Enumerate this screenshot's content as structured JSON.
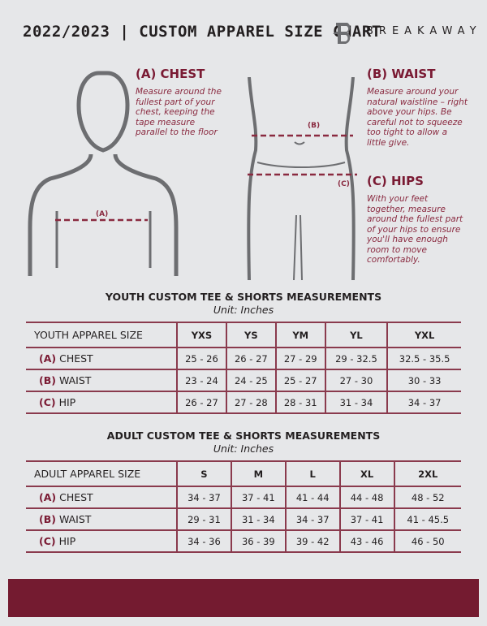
{
  "header": {
    "title": "2022/2023 | CUSTOM APPAREL SIZE CHART",
    "brand": "BREAKAWAY"
  },
  "guide": {
    "chest": {
      "title": "(A) CHEST",
      "text": "Measure around the fullest part of your chest, keeping the tape measure parallel to the floor",
      "marker": "(A)"
    },
    "waist": {
      "title": "(B) WAIST",
      "text": "Measure around your natural waistline – right above your hips. Be careful not to squeeze too tight to allow a little give.",
      "marker": "(B)"
    },
    "hips": {
      "title": "(C) HIPS",
      "text": "With your feet together, measure around the fullest part of your hips to ensure you'll have enough room to move comfortably.",
      "marker": "(C)"
    }
  },
  "youth": {
    "title": "YOUTH CUSTOM TEE & SHORTS MEASUREMENTS",
    "unit": "Unit: Inches",
    "size_label": "YOUTH APPAREL SIZE",
    "sizes": [
      "YXS",
      "YS",
      "YM",
      "YL",
      "YXL"
    ],
    "rows": [
      {
        "letter": "(A)",
        "name": "CHEST",
        "values": [
          "25 - 26",
          "26 - 27",
          "27 - 29",
          "29 - 32.5",
          "32.5 - 35.5"
        ]
      },
      {
        "letter": "(B)",
        "name": "WAIST",
        "values": [
          "23 - 24",
          "24 - 25",
          "25 - 27",
          "27 - 30",
          "30 - 33"
        ]
      },
      {
        "letter": "(C)",
        "name": "HIP",
        "values": [
          "26 - 27",
          "27 - 28",
          "28 - 31",
          "31 - 34",
          "34 - 37"
        ]
      }
    ]
  },
  "adult": {
    "title": "ADULT CUSTOM TEE & SHORTS MEASUREMENTS",
    "unit": "Unit: Inches",
    "size_label": "ADULT APPAREL SIZE",
    "sizes": [
      "S",
      "M",
      "L",
      "XL",
      "2XL"
    ],
    "rows": [
      {
        "letter": "(A)",
        "name": "CHEST",
        "values": [
          "34 - 37",
          "37 - 41",
          "41 - 44",
          "44 - 48",
          "48 - 52"
        ]
      },
      {
        "letter": "(B)",
        "name": "WAIST",
        "values": [
          "29 - 31",
          "31 - 34",
          "34 - 37",
          "37 - 41",
          "41 - 45.5"
        ]
      },
      {
        "letter": "(C)",
        "name": "HIP",
        "values": [
          "34 - 36",
          "36 - 39",
          "39 - 42",
          "43 - 46",
          "46 - 50"
        ]
      }
    ]
  },
  "colors": {
    "accent": "#741b30",
    "background": "#e6e7e9"
  }
}
